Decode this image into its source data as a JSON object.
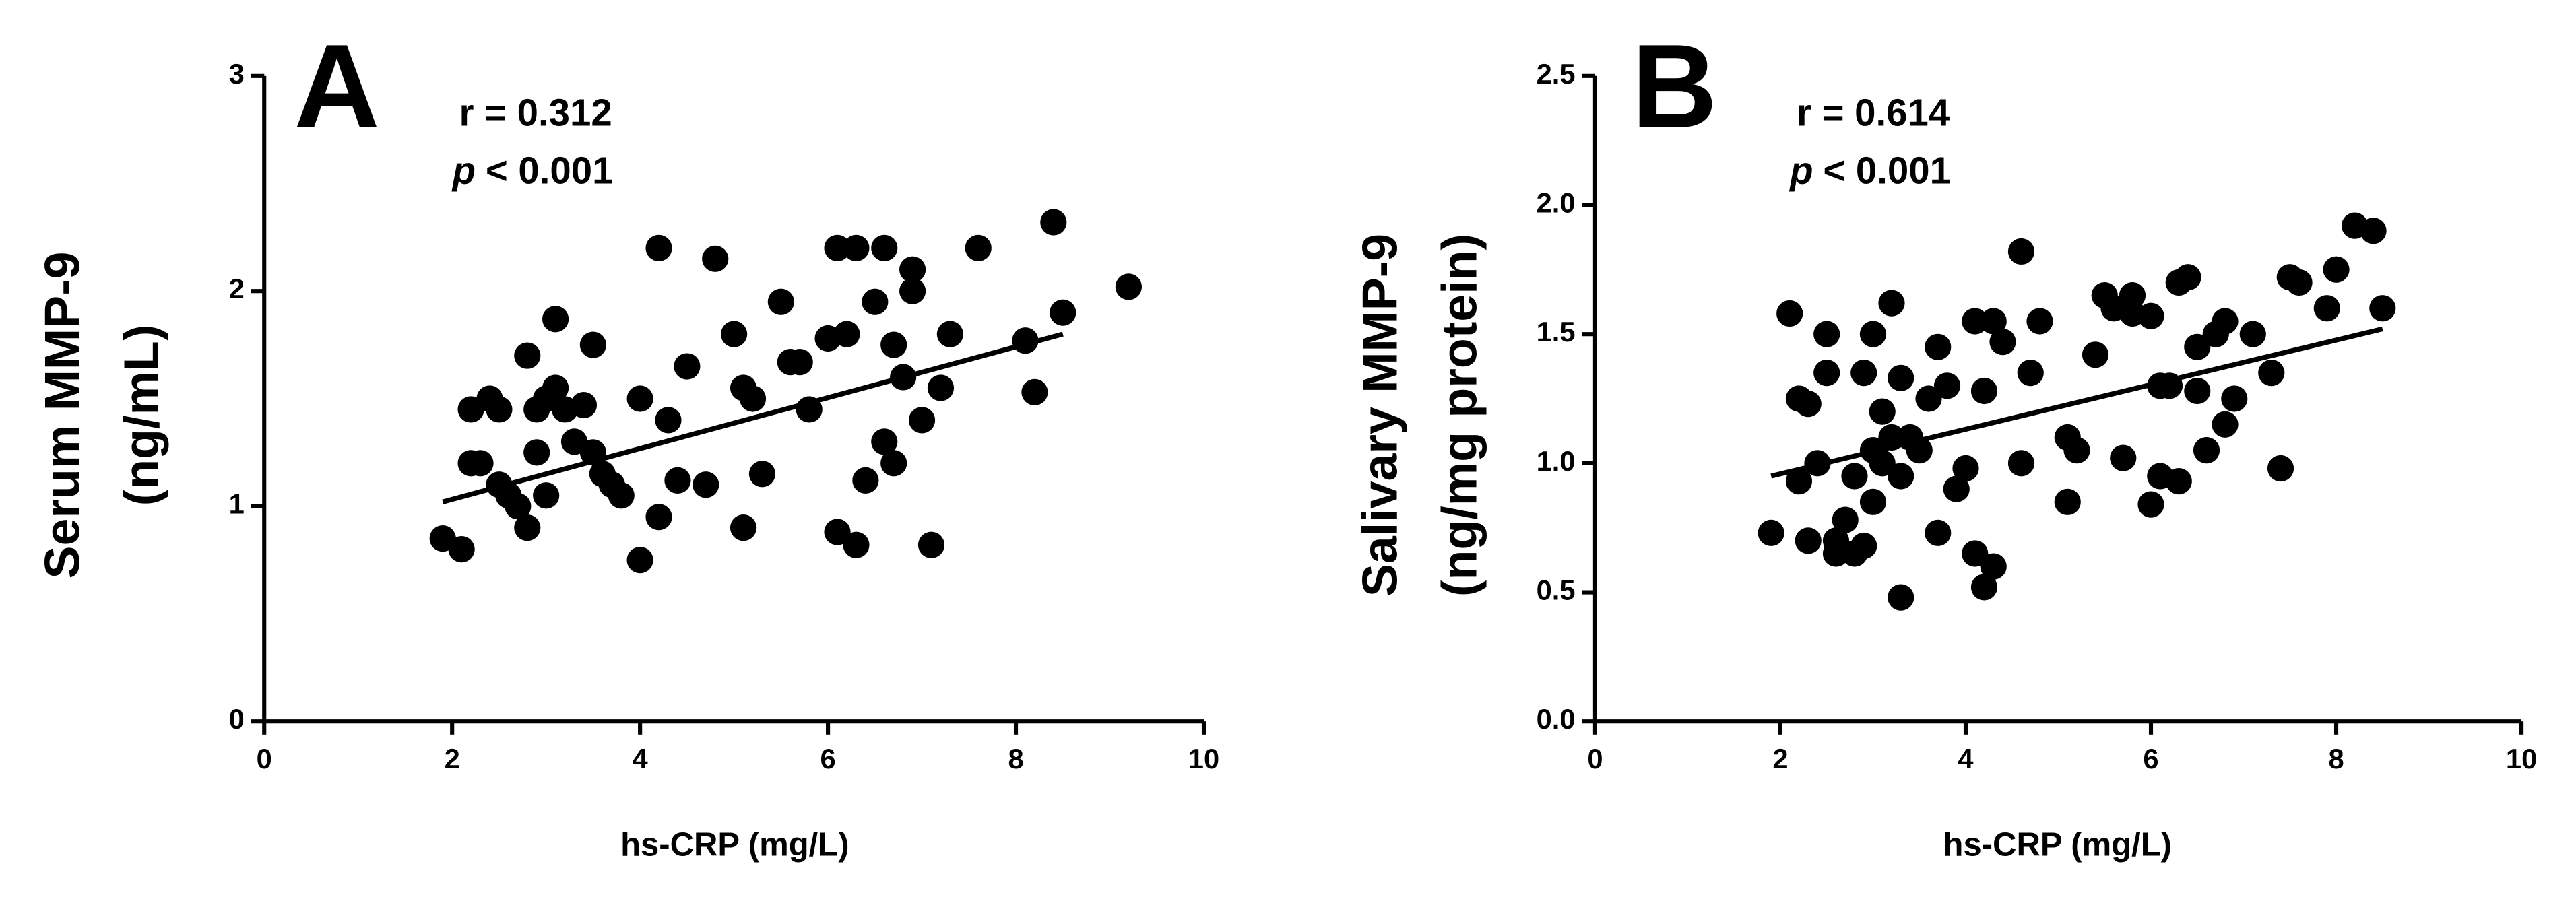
{
  "chart_data": [
    {
      "type": "scatter",
      "panel": "A",
      "annotation": {
        "stat": "r = 0.312",
        "p_symbol": "p",
        "p_value": "< 0.001"
      },
      "xlabel": "hs-CRP (mg/L)",
      "ylabel": [
        "Serum MMP-9",
        "(ng/mL)"
      ],
      "color": "#000000",
      "xlim": [
        0,
        10
      ],
      "ylim": [
        0,
        3
      ],
      "xticks": [
        0,
        2,
        4,
        6,
        8,
        10
      ],
      "yticks": [
        0,
        1,
        2,
        3
      ],
      "x": [
        1.9,
        2.1,
        2.2,
        2.2,
        2.3,
        2.4,
        2.5,
        2.5,
        2.6,
        2.7,
        2.8,
        2.8,
        2.9,
        2.9,
        3.0,
        3.0,
        3.1,
        3.1,
        3.2,
        3.3,
        3.4,
        3.5,
        3.5,
        3.6,
        3.7,
        3.8,
        4.0,
        4.0,
        4.2,
        4.2,
        4.3,
        4.4,
        4.5,
        4.7,
        4.8,
        5.0,
        5.1,
        5.1,
        5.2,
        5.3,
        5.5,
        5.6,
        5.7,
        5.8,
        6.0,
        6.1,
        6.1,
        6.2,
        6.3,
        6.3,
        6.4,
        6.5,
        6.6,
        6.6,
        6.7,
        6.7,
        6.8,
        6.9,
        6.9,
        7.0,
        7.1,
        7.2,
        7.3,
        7.6,
        8.1,
        8.2,
        8.4,
        8.5,
        9.2
      ],
      "y": [
        0.85,
        0.8,
        1.2,
        1.45,
        1.2,
        1.5,
        1.1,
        1.45,
        1.05,
        1.0,
        0.9,
        1.7,
        1.25,
        1.45,
        1.5,
        1.05,
        1.55,
        1.87,
        1.45,
        1.3,
        1.47,
        1.75,
        1.25,
        1.15,
        1.1,
        1.05,
        0.75,
        1.5,
        0.95,
        2.2,
        1.4,
        1.12,
        1.65,
        1.1,
        2.15,
        1.8,
        1.55,
        0.9,
        1.5,
        1.15,
        1.95,
        1.67,
        1.67,
        1.45,
        1.78,
        2.2,
        0.88,
        1.8,
        2.2,
        0.82,
        1.12,
        1.95,
        2.2,
        1.3,
        1.75,
        1.2,
        1.6,
        2.1,
        2.0,
        1.4,
        0.82,
        1.55,
        1.8,
        2.2,
        1.77,
        1.53,
        2.32,
        1.9,
        2.02
      ],
      "fit": {
        "x": [
          1.9,
          8.5
        ],
        "y": [
          1.02,
          1.8
        ]
      }
    },
    {
      "type": "scatter",
      "panel": "B",
      "annotation": {
        "stat": "r = 0.614",
        "p_symbol": "p",
        "p_value": "< 0.001"
      },
      "xlabel": "hs-CRP (mg/L)",
      "ylabel": [
        "Salivary MMP-9",
        "(ng/mg protein)"
      ],
      "color": "#000000",
      "xlim": [
        0,
        10
      ],
      "ylim": [
        0,
        2.5
      ],
      "xticks": [
        0,
        2,
        4,
        6,
        8,
        10
      ],
      "yticks": [
        {
          "value": 0,
          "label": "0.0"
        },
        0.5,
        {
          "value": 1,
          "label": "1.0"
        },
        1.5,
        {
          "value": 2,
          "label": "2.0"
        },
        2.5
      ],
      "x": [
        1.9,
        2.1,
        2.2,
        2.2,
        2.3,
        2.3,
        2.4,
        2.5,
        2.5,
        2.6,
        2.6,
        2.7,
        2.8,
        2.8,
        2.9,
        2.9,
        3.0,
        3.0,
        3.0,
        3.1,
        3.1,
        3.2,
        3.2,
        3.3,
        3.3,
        3.3,
        3.4,
        3.5,
        3.6,
        3.7,
        3.7,
        3.8,
        3.9,
        4.0,
        4.1,
        4.1,
        4.2,
        4.2,
        4.3,
        4.3,
        4.4,
        4.6,
        4.6,
        4.7,
        4.8,
        5.1,
        5.1,
        5.2,
        5.4,
        5.5,
        5.6,
        5.7,
        5.8,
        5.8,
        6.0,
        6.0,
        6.1,
        6.1,
        6.2,
        6.3,
        6.3,
        6.4,
        6.5,
        6.5,
        6.6,
        6.7,
        6.8,
        6.8,
        6.9,
        7.1,
        7.3,
        7.4,
        7.5,
        7.6,
        7.9,
        8.0,
        8.2,
        8.4,
        8.5
      ],
      "y": [
        0.73,
        1.58,
        0.93,
        1.25,
        0.7,
        1.23,
        1.0,
        1.35,
        1.5,
        0.7,
        0.65,
        0.78,
        0.65,
        0.95,
        1.35,
        0.68,
        1.5,
        1.05,
        0.85,
        1.2,
        1.0,
        1.62,
        1.1,
        0.95,
        1.33,
        0.48,
        1.1,
        1.05,
        1.25,
        1.45,
        0.73,
        1.3,
        0.9,
        0.98,
        1.55,
        0.65,
        1.28,
        0.52,
        1.55,
        0.6,
        1.47,
        1.0,
        1.82,
        1.35,
        1.55,
        1.1,
        0.85,
        1.05,
        1.42,
        1.65,
        1.6,
        1.02,
        1.65,
        1.58,
        1.57,
        0.84,
        1.3,
        0.95,
        1.3,
        0.93,
        1.7,
        1.72,
        1.45,
        1.28,
        1.05,
        1.5,
        1.55,
        1.15,
        1.25,
        1.5,
        1.35,
        0.98,
        1.72,
        1.7,
        1.6,
        1.75,
        1.92,
        1.9,
        1.6
      ],
      "fit": {
        "x": [
          1.9,
          8.5
        ],
        "y": [
          0.95,
          1.52
        ]
      }
    }
  ]
}
